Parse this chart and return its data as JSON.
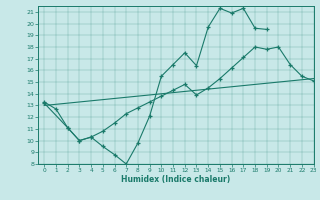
{
  "bg_color": "#c8e8e8",
  "line_color": "#1a7a6a",
  "xlabel": "Humidex (Indice chaleur)",
  "xlim": [
    -0.5,
    23
  ],
  "ylim": [
    8,
    21.5
  ],
  "yticks": [
    8,
    9,
    10,
    11,
    12,
    13,
    14,
    15,
    16,
    17,
    18,
    19,
    20,
    21
  ],
  "xticks": [
    0,
    1,
    2,
    3,
    4,
    5,
    6,
    7,
    8,
    9,
    10,
    11,
    12,
    13,
    14,
    15,
    16,
    17,
    18,
    19,
    20,
    21,
    22,
    23
  ],
  "line1_x": [
    0,
    1,
    2,
    3,
    4,
    5,
    6,
    7,
    8,
    9,
    10,
    11,
    12,
    13,
    14,
    15,
    16,
    17,
    18,
    19
  ],
  "line1_y": [
    13.3,
    12.7,
    11.1,
    10.0,
    10.3,
    9.5,
    8.8,
    8.0,
    9.8,
    12.1,
    15.5,
    16.5,
    17.5,
    16.4,
    19.7,
    21.3,
    20.9,
    21.3,
    19.6,
    19.5
  ],
  "line2_x": [
    0,
    2,
    3,
    4,
    5,
    6,
    7,
    8,
    9,
    10,
    11,
    12,
    13,
    14,
    15,
    16,
    17,
    18,
    19,
    20,
    21,
    22,
    23
  ],
  "line2_y": [
    13.2,
    11.1,
    10.0,
    10.3,
    10.8,
    11.5,
    12.3,
    12.8,
    13.3,
    13.8,
    14.3,
    14.8,
    13.9,
    14.5,
    15.3,
    16.2,
    17.1,
    18.0,
    17.8,
    18.0,
    16.5,
    15.5,
    15.1
  ],
  "line3_x": [
    0,
    23
  ],
  "line3_y": [
    13.0,
    15.3
  ]
}
